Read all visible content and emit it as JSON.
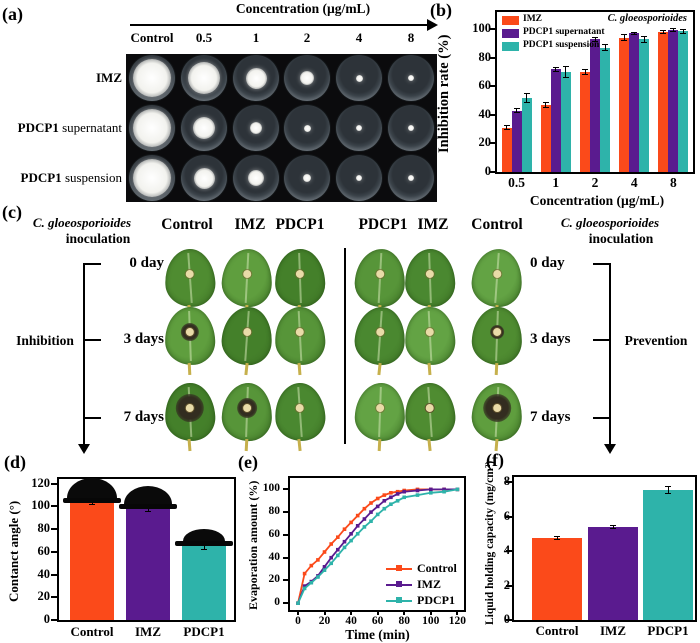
{
  "panels": {
    "a": "(a)",
    "b": "(b)",
    "c": "(c)",
    "d": "(d)",
    "e": "(e)",
    "f": "(f)"
  },
  "colors": {
    "orange": "#fb4a1a",
    "purple": "#5a1b8f",
    "teal": "#2eb3aa"
  },
  "panel_a": {
    "header": "Concentration (µg/mL)",
    "columns": [
      "Control",
      "0.5",
      "1",
      "2",
      "4",
      "8"
    ],
    "rows": [
      {
        "bold": "IMZ",
        "rest": "",
        "colony_sizes": [
          0.95,
          0.8,
          0.52,
          0.34,
          0.17,
          0.15
        ]
      },
      {
        "bold": "PDCP1",
        "rest": " supernatant",
        "colony_sizes": [
          0.95,
          0.55,
          0.3,
          0.18,
          0.16,
          0.14
        ]
      },
      {
        "bold": "PDCP1",
        "rest": " suspension",
        "colony_sizes": [
          0.95,
          0.52,
          0.4,
          0.19,
          0.16,
          0.14
        ]
      }
    ]
  },
  "panel_c": {
    "left_species": "C. gloeosporioides",
    "left_inoculation": "inoculation",
    "right_species": "C. gloeosporioides",
    "right_inoculation": "inoculation",
    "left_columns": [
      "Control",
      "IMZ",
      "PDCP1"
    ],
    "right_columns": [
      "PDCP1",
      "IMZ",
      "Control"
    ],
    "left_day_labels": [
      "0 day",
      "3 days",
      "7 days"
    ],
    "right_day_labels": [
      "0 day",
      "3 days",
      "7 days"
    ],
    "left_process": "Inhibition",
    "right_process": "Prevention",
    "left_lesion_radii": [
      [
        0,
        0,
        0
      ],
      [
        9,
        4,
        0
      ],
      [
        14,
        10,
        0
      ]
    ],
    "right_lesion_radii": [
      [
        0,
        0,
        0
      ],
      [
        0,
        0,
        7
      ],
      [
        0,
        5,
        14
      ]
    ]
  },
  "chart_data": [
    {
      "id": "b",
      "type": "bar",
      "title": "C. gloeosporioides",
      "ylabel": "Inhibition rate (%)",
      "xlabel": "Concentration (µg/mL)",
      "yticks": [
        0,
        20,
        40,
        60,
        80,
        100
      ],
      "ylim": [
        0,
        112
      ],
      "legend_position": "top-left",
      "categories": [
        "0.5",
        "1",
        "2",
        "4",
        "8"
      ],
      "series": [
        {
          "name": "IMZ",
          "color": "#fb4a1a",
          "values": [
            31,
            47,
            70,
            94,
            98
          ],
          "errors": [
            1.5,
            1.5,
            1.5,
            2,
            1
          ]
        },
        {
          "name": "PDCP1 supernatant",
          "color": "#5a1b8f",
          "values": [
            43,
            72,
            93,
            97,
            99.5
          ],
          "errors": [
            1.5,
            1.5,
            1.5,
            1,
            0.8
          ]
        },
        {
          "name": "PDCP1 suspension",
          "color": "#2eb3aa",
          "values": [
            52,
            70,
            87,
            93,
            98.5
          ],
          "errors": [
            3,
            4,
            2,
            2,
            1.2
          ]
        }
      ]
    },
    {
      "id": "d",
      "type": "bar",
      "ylabel": "Contanct angle (°)",
      "yticks": [
        0,
        20,
        40,
        60,
        80,
        100,
        120
      ],
      "ylim": [
        0,
        124
      ],
      "categories": [
        "Control",
        "IMZ",
        "PDCP1"
      ],
      "values": [
        103,
        97.5,
        65
      ],
      "errors": [
        1,
        2,
        3
      ],
      "colors": [
        "#fb4a1a",
        "#5a1b8f",
        "#2eb3aa"
      ],
      "droplets": [
        {
          "w": 50,
          "h": 20
        },
        {
          "w": 48,
          "h": 18
        },
        {
          "w": 42,
          "h": 12
        }
      ]
    },
    {
      "id": "e",
      "type": "line",
      "ylabel": "Evaporation amount (%)",
      "xlabel": "Time (min)",
      "yticks": [
        0,
        20,
        40,
        60,
        80,
        100
      ],
      "xticks": [
        0,
        20,
        40,
        60,
        80,
        100,
        120
      ],
      "xlim": [
        -6,
        125
      ],
      "ylim": [
        -6,
        110
      ],
      "legend_position": "bottom-right",
      "x": [
        0,
        5,
        10,
        15,
        20,
        25,
        30,
        35,
        40,
        45,
        50,
        55,
        60,
        65,
        70,
        75,
        80,
        90,
        100,
        110,
        120
      ],
      "series": [
        {
          "name": "Control",
          "color": "#fb4a1a",
          "values": [
            0,
            26,
            33,
            38,
            45,
            52,
            58,
            65,
            71,
            77,
            83,
            88,
            92,
            95,
            97,
            98,
            99,
            100,
            100,
            100,
            100
          ]
        },
        {
          "name": "IMZ",
          "color": "#5a1b8f",
          "values": [
            0,
            15,
            19,
            24,
            32,
            40,
            47,
            54,
            61,
            68,
            74,
            80,
            85,
            90,
            93,
            96,
            98,
            99,
            100,
            100,
            100
          ]
        },
        {
          "name": "PDCP1",
          "color": "#2eb3aa",
          "values": [
            0,
            13,
            18,
            23,
            29,
            35,
            42,
            49,
            55,
            61,
            67,
            72,
            78,
            83,
            87,
            90,
            93,
            95,
            97,
            98,
            100
          ]
        }
      ]
    },
    {
      "id": "f",
      "type": "bar",
      "ylabel": "Liquid holding capacity (mg/cm²)",
      "yticks": [
        0,
        2,
        4,
        6,
        8
      ],
      "ylim": [
        0,
        8.3
      ],
      "categories": [
        "Control",
        "IMZ",
        "PDCP1"
      ],
      "values": [
        4.75,
        5.4,
        7.55
      ],
      "errors": [
        0.08,
        0.1,
        0.18
      ],
      "colors": [
        "#fb4a1a",
        "#5a1b8f",
        "#2eb3aa"
      ]
    }
  ]
}
